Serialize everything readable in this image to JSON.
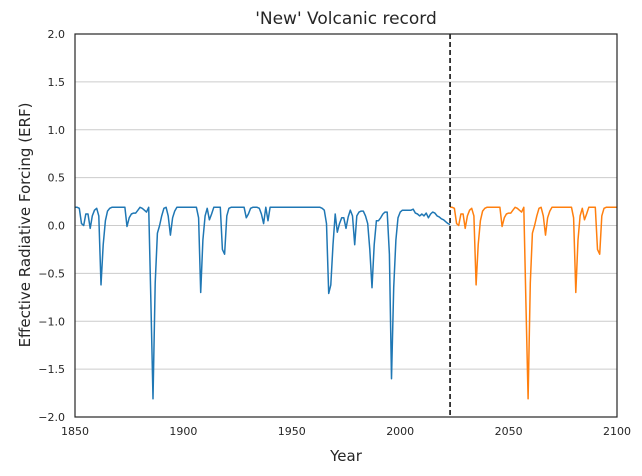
{
  "chart_data": {
    "type": "line",
    "title": "'New' Volcanic record",
    "xlabel": "Year",
    "ylabel": "Effective Radiative Forcing (ERF)",
    "xlim": [
      1850,
      2100
    ],
    "ylim": [
      -2.0,
      2.0
    ],
    "xticks": [
      1850,
      1900,
      1950,
      2000,
      2050,
      2100
    ],
    "xtick_labels": [
      "1850",
      "1900",
      "1950",
      "2000",
      "2050",
      "2100"
    ],
    "yticks": [
      -2.0,
      -1.5,
      -1.0,
      -0.5,
      0.0,
      0.5,
      1.0,
      1.5,
      2.0
    ],
    "ytick_labels": [
      "−2.0",
      "−1.5",
      "−1.0",
      "−0.5",
      "0.0",
      "0.5",
      "1.0",
      "1.5",
      "2.0"
    ],
    "grid": "horizontal",
    "divider_x": 2023,
    "series": [
      {
        "color": "#1f77b4",
        "x": [
          1850,
          1851,
          1852,
          1853,
          1854,
          1855,
          1856,
          1857,
          1858,
          1859,
          1860,
          1861,
          1862,
          1863,
          1864,
          1865,
          1866,
          1867,
          1868,
          1869,
          1870,
          1871,
          1872,
          1873,
          1874,
          1875,
          1876,
          1877,
          1878,
          1879,
          1880,
          1881,
          1882,
          1883,
          1884,
          1885,
          1886,
          1887,
          1888,
          1889,
          1890,
          1891,
          1892,
          1893,
          1894,
          1895,
          1896,
          1897,
          1898,
          1899,
          1900,
          1901,
          1902,
          1903,
          1904,
          1905,
          1906,
          1907,
          1908,
          1909,
          1910,
          1911,
          1912,
          1913,
          1914,
          1915,
          1916,
          1917,
          1918,
          1919,
          1920,
          1921,
          1922,
          1923,
          1924,
          1925,
          1926,
          1927,
          1928,
          1929,
          1930,
          1931,
          1932,
          1933,
          1934,
          1935,
          1936,
          1937,
          1938,
          1939,
          1940,
          1950,
          1960,
          1961,
          1962,
          1963,
          1964,
          1965,
          1966,
          1967,
          1968,
          1969,
          1970,
          1971,
          1972,
          1973,
          1974,
          1975,
          1976,
          1977,
          1978,
          1979,
          1980,
          1981,
          1982,
          1983,
          1984,
          1985,
          1986,
          1987,
          1988,
          1989,
          1990,
          1991,
          1992,
          1993,
          1994,
          1995,
          1996,
          1997,
          1998,
          1999,
          2000,
          2001,
          2002,
          2003,
          2004,
          2005,
          2006,
          2007,
          2008,
          2009,
          2010,
          2011,
          2012,
          2013,
          2014,
          2015,
          2016,
          2017,
          2018,
          2019,
          2020,
          2021,
          2022,
          2023
        ],
        "y": [
          0.19,
          0.19,
          0.18,
          0.02,
          0.0,
          0.12,
          0.12,
          -0.03,
          0.1,
          0.16,
          0.18,
          0.1,
          -0.62,
          -0.2,
          0.05,
          0.15,
          0.18,
          0.19,
          0.19,
          0.19,
          0.19,
          0.19,
          0.19,
          0.19,
          -0.01,
          0.08,
          0.12,
          0.13,
          0.13,
          0.16,
          0.19,
          0.18,
          0.16,
          0.14,
          0.19,
          -0.8,
          -1.81,
          -0.6,
          -0.08,
          0.0,
          0.1,
          0.18,
          0.19,
          0.1,
          -0.1,
          0.08,
          0.15,
          0.19,
          0.19,
          0.19,
          0.19,
          0.19,
          0.19,
          0.19,
          0.19,
          0.19,
          0.19,
          0.08,
          -0.7,
          -0.15,
          0.1,
          0.18,
          0.06,
          0.12,
          0.19,
          0.19,
          0.19,
          0.19,
          -0.25,
          -0.3,
          0.1,
          0.18,
          0.19,
          0.19,
          0.19,
          0.19,
          0.19,
          0.19,
          0.19,
          0.08,
          0.12,
          0.18,
          0.19,
          0.19,
          0.19,
          0.18,
          0.12,
          0.02,
          0.19,
          0.05,
          0.19,
          0.19,
          0.19,
          0.19,
          0.19,
          0.19,
          0.18,
          0.16,
          0.02,
          -0.71,
          -0.62,
          -0.2,
          0.12,
          -0.07,
          0.02,
          0.08,
          0.08,
          -0.03,
          0.09,
          0.16,
          0.1,
          -0.2,
          0.1,
          0.14,
          0.15,
          0.15,
          0.1,
          0.02,
          -0.25,
          -0.65,
          -0.2,
          0.05,
          0.05,
          0.08,
          0.12,
          0.14,
          0.14,
          -0.3,
          -1.6,
          -0.65,
          -0.15,
          0.08,
          0.14,
          0.16,
          0.16,
          0.16,
          0.16,
          0.16,
          0.17,
          0.13,
          0.12,
          0.1,
          0.12,
          0.1,
          0.13,
          0.08,
          0.12,
          0.14,
          0.13,
          0.1,
          0.09,
          0.07,
          0.06,
          0.04,
          0.02,
          0.01
        ]
      },
      {
        "color": "#ff7f0e",
        "x": [
          2023,
          2024,
          2025,
          2026,
          2027,
          2028,
          2029,
          2030,
          2031,
          2032,
          2033,
          2034,
          2035,
          2036,
          2037,
          2038,
          2039,
          2040,
          2041,
          2042,
          2043,
          2044,
          2045,
          2046,
          2047,
          2048,
          2049,
          2050,
          2051,
          2052,
          2053,
          2054,
          2055,
          2056,
          2057,
          2058,
          2059,
          2060,
          2061,
          2062,
          2063,
          2064,
          2065,
          2066,
          2067,
          2068,
          2069,
          2070,
          2071,
          2072,
          2073,
          2074,
          2075,
          2076,
          2077,
          2078,
          2079,
          2080,
          2081,
          2082,
          2083,
          2084,
          2085,
          2086,
          2087,
          2088,
          2089,
          2090,
          2091,
          2092,
          2093,
          2094,
          2095,
          2096,
          2097,
          2098,
          2099,
          2100
        ],
        "y": [
          0.19,
          0.19,
          0.18,
          0.02,
          0.0,
          0.12,
          0.12,
          -0.03,
          0.1,
          0.16,
          0.18,
          0.1,
          -0.62,
          -0.2,
          0.05,
          0.15,
          0.18,
          0.19,
          0.19,
          0.19,
          0.19,
          0.19,
          0.19,
          0.19,
          -0.01,
          0.08,
          0.12,
          0.13,
          0.13,
          0.16,
          0.19,
          0.18,
          0.16,
          0.14,
          0.19,
          -0.8,
          -1.81,
          -0.6,
          -0.08,
          0.0,
          0.1,
          0.18,
          0.19,
          0.1,
          -0.1,
          0.08,
          0.15,
          0.19,
          0.19,
          0.19,
          0.19,
          0.19,
          0.19,
          0.19,
          0.19,
          0.19,
          0.19,
          0.08,
          -0.7,
          -0.15,
          0.1,
          0.18,
          0.06,
          0.12,
          0.19,
          0.19,
          0.19,
          0.19,
          -0.25,
          -0.3,
          0.1,
          0.18,
          0.19,
          0.19,
          0.19,
          0.19,
          0.19,
          0.19
        ]
      }
    ]
  }
}
